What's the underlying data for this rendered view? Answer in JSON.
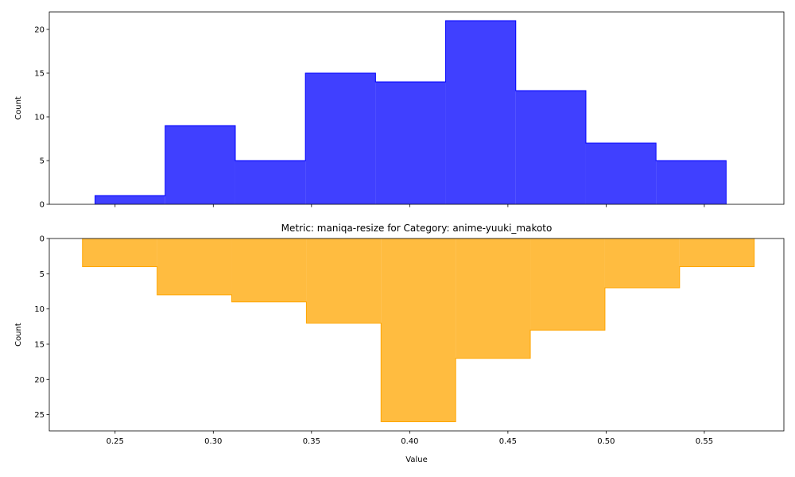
{
  "chart_data": [
    {
      "type": "histogram",
      "title": "",
      "xlabel": "",
      "ylabel": "Count",
      "color": "#0000ff",
      "fill_opacity": 0.75,
      "bin_edges": [
        0.2398,
        0.2755,
        0.3112,
        0.3469,
        0.3826,
        0.4183,
        0.454,
        0.4897,
        0.5254,
        0.5611
      ],
      "counts": [
        1,
        9,
        5,
        15,
        14,
        21,
        13,
        7,
        5
      ],
      "xlim": [
        0.2165,
        0.5905
      ],
      "ylim": [
        0,
        22
      ],
      "y_ticks": [
        0,
        5,
        10,
        15,
        20
      ],
      "x_ticks": [
        0.25,
        0.3,
        0.35,
        0.4,
        0.45,
        0.5,
        0.55
      ],
      "show_x_tick_labels": false,
      "y_inverted": false,
      "grid": false
    },
    {
      "type": "histogram",
      "title": "Metric: maniqa-resize for Category: anime-yuuki_makoto",
      "xlabel": "Value",
      "ylabel": "Count",
      "color": "#ffa500",
      "fill_opacity": 0.75,
      "bin_edges": [
        0.2334,
        0.2714,
        0.3094,
        0.3474,
        0.3854,
        0.4234,
        0.4614,
        0.4994,
        0.5374,
        0.5754
      ],
      "counts": [
        4,
        8,
        9,
        12,
        26,
        17,
        13,
        7,
        4
      ],
      "xlim": [
        0.2165,
        0.5905
      ],
      "ylim": [
        0,
        27.3
      ],
      "y_ticks": [
        0,
        5,
        10,
        15,
        20,
        25
      ],
      "x_ticks": [
        0.25,
        0.3,
        0.35,
        0.4,
        0.45,
        0.5,
        0.55
      ],
      "x_tick_labels": [
        "0.25",
        "0.30",
        "0.35",
        "0.40",
        "0.45",
        "0.50",
        "0.55"
      ],
      "show_x_tick_labels": true,
      "y_inverted": true,
      "grid": false
    }
  ]
}
